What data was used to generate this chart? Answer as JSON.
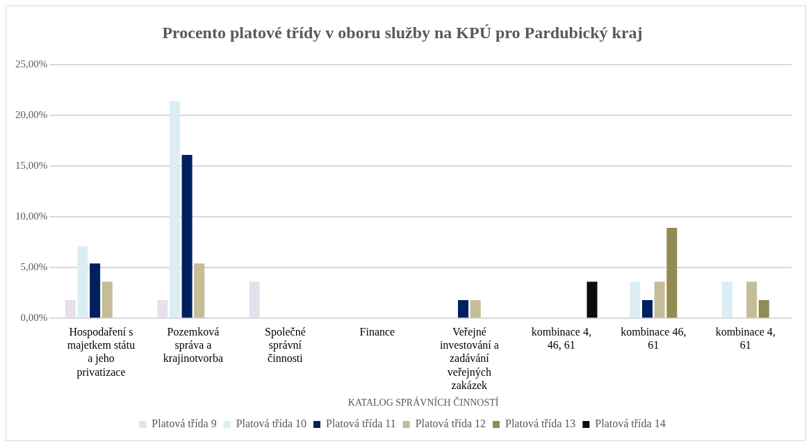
{
  "chart_data": {
    "type": "bar",
    "title": "Procento platové třídy v oboru služby na KPÚ pro Pardubický kraj",
    "xlabel": "KATALOG SPRÁVNÍCH ČINNOSTÍ",
    "categories": [
      "Hospodaření s majetkem státu a jeho privatizace",
      "Pozemková správa a krajinotvorba",
      "Společné správní činnosti",
      "Finance",
      "Veřejné investování a zadávání veřejných zakázek",
      "kombinace 4, 46, 61",
      "kombinace 46, 61",
      "kombinace 4, 61"
    ],
    "series": [
      {
        "name": "Platová třída 9",
        "color": "#e6e0ec",
        "values": [
          1.8,
          1.8,
          3.6,
          0,
          0,
          0,
          0,
          0
        ]
      },
      {
        "name": "Platová třída 10",
        "color": "#dbeef4",
        "values": [
          7.1,
          21.4,
          0,
          0,
          0,
          0,
          3.6,
          3.6
        ]
      },
      {
        "name": "Platová třída 11",
        "color": "#002060",
        "values": [
          5.4,
          16.1,
          0,
          0,
          1.8,
          0,
          1.8,
          0
        ]
      },
      {
        "name": "Platová třída 12",
        "color": "#c4bd97",
        "values": [
          3.6,
          5.4,
          0,
          0,
          1.8,
          0,
          3.6,
          3.6
        ]
      },
      {
        "name": "Platová třída 13",
        "color": "#948a54",
        "values": [
          0,
          0,
          0,
          0,
          0,
          0,
          8.9,
          1.8
        ]
      },
      {
        "name": "Platová třída 14",
        "color": "#0d0d0d",
        "values": [
          0,
          0,
          0,
          0,
          0,
          3.6,
          0,
          0
        ]
      }
    ],
    "ylim": [
      0,
      25
    ],
    "yticks": [
      {
        "value": 0,
        "label": "0,00%"
      },
      {
        "value": 5,
        "label": "5,00%"
      },
      {
        "value": 10,
        "label": "10,00%"
      },
      {
        "value": 15,
        "label": "15,00%"
      },
      {
        "value": 20,
        "label": "20,00%"
      },
      {
        "value": 25,
        "label": "25,00%"
      }
    ],
    "grid": "y",
    "legend": "bottom"
  }
}
